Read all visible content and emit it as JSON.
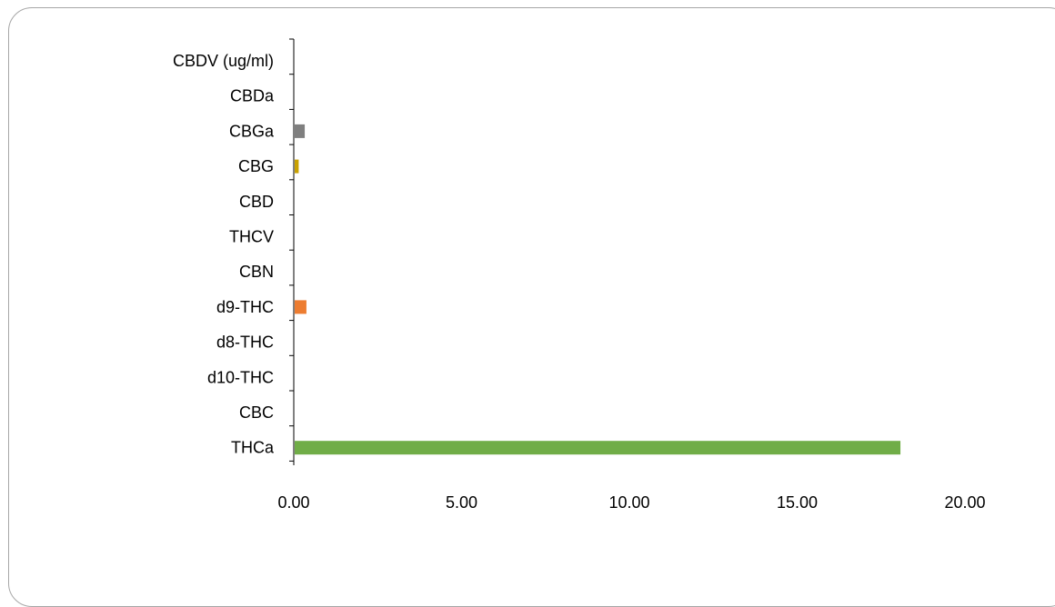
{
  "chart_data": {
    "type": "bar",
    "orientation": "horizontal",
    "categories": [
      "CBDV (ug/ml)",
      "CBDa",
      "CBGa",
      "CBG",
      "CBD",
      "THCV",
      "CBN",
      "d9-THC",
      "d8-THC",
      "d10-THC",
      "CBC",
      "THCa"
    ],
    "values": [
      0,
      0,
      0.3,
      0.12,
      0,
      0,
      0,
      0.35,
      0,
      0,
      0,
      18.05
    ],
    "colors": [
      "#a5a5a5",
      "#5b9bd5",
      "#7f7f7f",
      "#c9a100",
      "#4472c4",
      "#70ad47",
      "#264478",
      "#ed7d31",
      "#636363",
      "#997300",
      "#255e91",
      "#70ad47"
    ],
    "xlim": [
      0,
      20
    ],
    "xticks": [
      "0.00",
      "5.00",
      "10.00",
      "15.00",
      "20.00"
    ],
    "title": "",
    "xlabel": "",
    "ylabel": "",
    "grid": false,
    "legend": "none"
  }
}
